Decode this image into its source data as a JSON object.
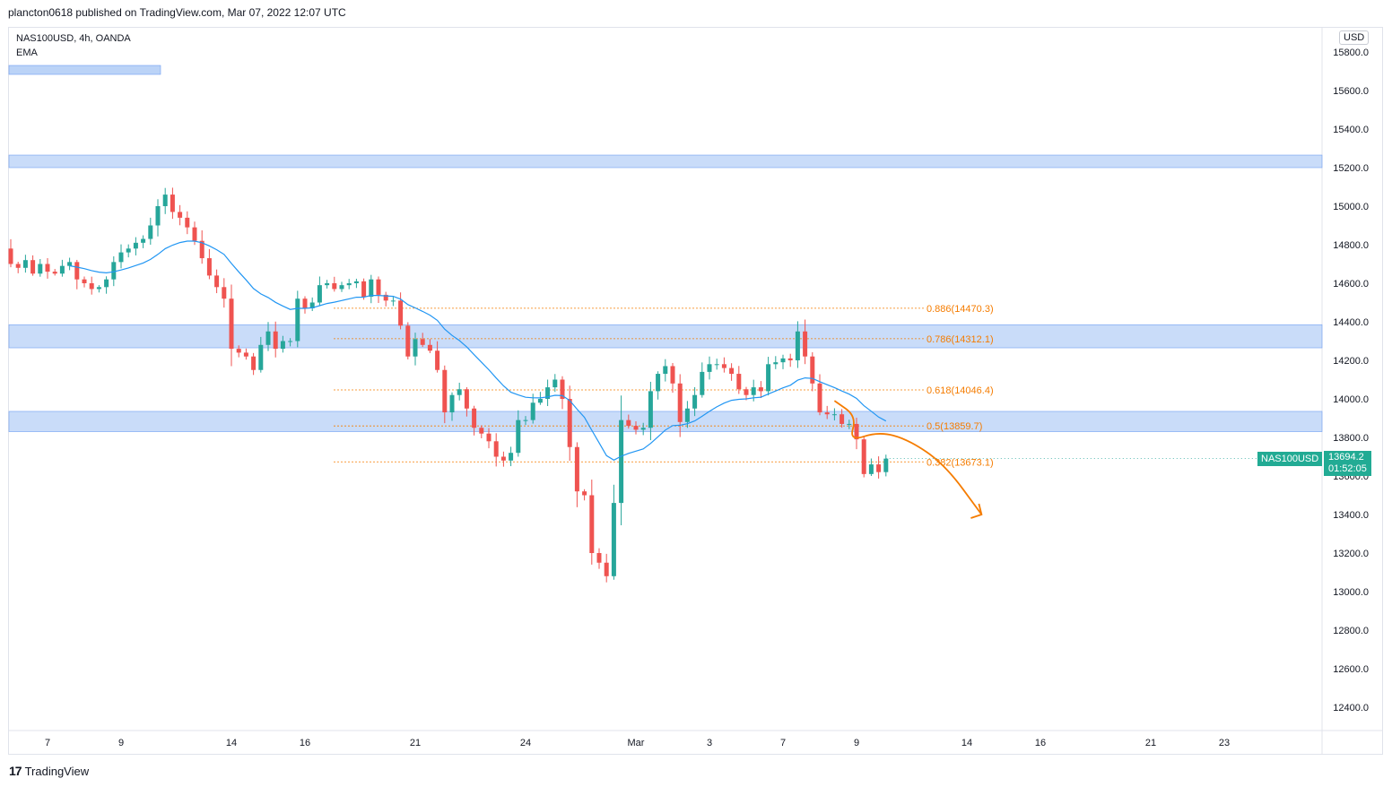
{
  "header": {
    "publisher": "plancton0618 published on TradingView.com, Mar 07, 2022 12:07 UTC"
  },
  "legend": {
    "symbol_line": "NAS100USD, 4h, OANDA",
    "indicator": "EMA"
  },
  "price_axis": {
    "currency": "USD"
  },
  "current": {
    "symbol": "NAS100USD",
    "price": "13694.2",
    "countdown": "01:52:05"
  },
  "footer": {
    "brand": "TradingView"
  },
  "colors": {
    "up": "#26a69a",
    "down": "#ef5350",
    "ema": "#2196f3",
    "zone": "#bbd3f7",
    "zone_border": "#6f9ff2",
    "fib": "#f57c00",
    "drawing": "#f57c00"
  },
  "chart_data": {
    "type": "candlestick",
    "title": "NAS100USD, 4h, OANDA",
    "ylim": [
      12300,
      15950
    ],
    "y_ticks": [
      15800,
      15600,
      15400,
      15200,
      15000,
      14800,
      14600,
      14400,
      14200,
      14000,
      13800,
      13600,
      13400,
      13200,
      13000,
      12800,
      12600,
      12400
    ],
    "x_ticks": [
      {
        "label": "7",
        "bar": 5
      },
      {
        "label": "9",
        "bar": 15
      },
      {
        "label": "14",
        "bar": 30
      },
      {
        "label": "16",
        "bar": 40
      },
      {
        "label": "21",
        "bar": 55
      },
      {
        "label": "24",
        "bar": 70
      },
      {
        "label": "Mar",
        "bar": 85
      },
      {
        "label": "3",
        "bar": 95
      },
      {
        "label": "7",
        "bar": 105
      },
      {
        "label": "9",
        "bar": 115
      },
      {
        "label": "14",
        "bar": 130
      },
      {
        "label": "16",
        "bar": 140
      },
      {
        "label": "21",
        "bar": 155
      },
      {
        "label": "23",
        "bar": 165
      }
    ],
    "closes": [
      14700,
      14680,
      14720,
      14650,
      14700,
      14660,
      14650,
      14690,
      14710,
      14620,
      14600,
      14570,
      14580,
      14620,
      14710,
      14760,
      14780,
      14810,
      14830,
      14900,
      15000,
      15060,
      14970,
      14940,
      14890,
      14820,
      14730,
      14640,
      14580,
      14520,
      14260,
      14240,
      14220,
      14150,
      14280,
      14350,
      14260,
      14300,
      14300,
      14520,
      14470,
      14500,
      14590,
      14600,
      14570,
      14590,
      14600,
      14610,
      14530,
      14620,
      14540,
      14510,
      14510,
      14380,
      14220,
      14310,
      14280,
      14250,
      14150,
      13930,
      14020,
      14050,
      13950,
      13850,
      13820,
      13780,
      13700,
      13680,
      13720,
      13890,
      13890,
      13980,
      14000,
      14060,
      14100,
      14000,
      13750,
      13520,
      13500,
      13200,
      13150,
      13080,
      13460,
      13890,
      13860,
      13840,
      13850,
      14040,
      14130,
      14170,
      14080,
      13880,
      13950,
      14020,
      14140,
      14180,
      14180,
      14160,
      14130,
      14050,
      14020,
      14060,
      14040,
      14180,
      14190,
      14210,
      14200,
      14350,
      14220,
      14080,
      13930,
      13920,
      13920,
      13870,
      13870,
      13790,
      13610,
      13660,
      13620,
      13690
    ],
    "ema": {
      "name": "EMA"
    },
    "zones": [
      {
        "from": 15200,
        "to": 15265
      },
      {
        "from": 14265,
        "to": 14385
      },
      {
        "from": 13830,
        "to": 13935
      }
    ],
    "fib_levels": [
      {
        "label": "0.886(14470.3)",
        "value": 14470.3
      },
      {
        "label": "0.786(14312.1)",
        "value": 14312.1
      },
      {
        "label": "0.618(14046.4)",
        "value": 14046.4
      },
      {
        "label": "0.5(13859.7)",
        "value": 13859.7
      },
      {
        "label": "0.382(13673.1)",
        "value": 13673.1
      }
    ],
    "projection": {
      "points": [
        {
          "bar": 112,
          "price": 13990
        },
        {
          "bar": 115,
          "price": 13910
        },
        {
          "bar": 114,
          "price": 13780
        },
        {
          "bar": 118,
          "price": 13830
        },
        {
          "bar": 122,
          "price": 13790
        },
        {
          "bar": 127,
          "price": 13660
        },
        {
          "bar": 132,
          "price": 13400
        }
      ]
    }
  }
}
